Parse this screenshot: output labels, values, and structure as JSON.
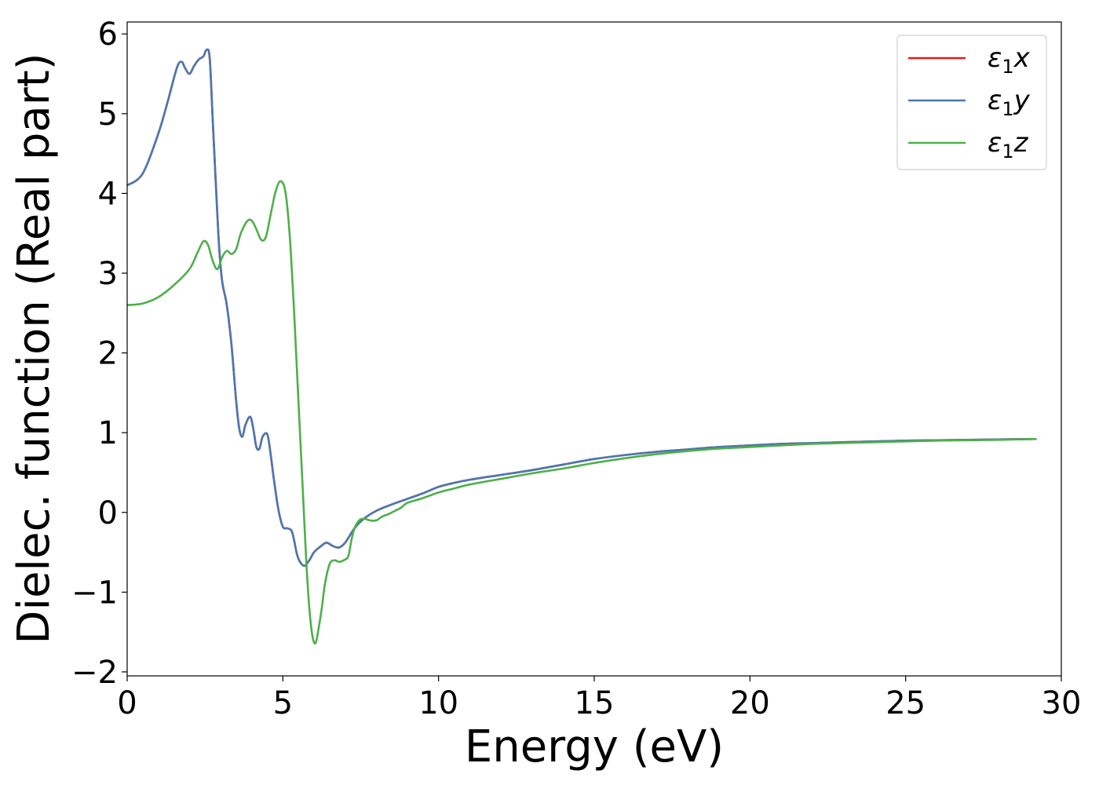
{
  "chart_data": {
    "type": "line",
    "xlabel": "Energy (eV)",
    "ylabel": "Dielec. function (Real part)",
    "xlim": [
      0,
      30
    ],
    "ylim": [
      -2.05,
      6.15
    ],
    "x_ticks": [
      0,
      5,
      10,
      15,
      20,
      25,
      30
    ],
    "y_ticks": [
      -2,
      -1,
      0,
      1,
      2,
      3,
      4,
      5,
      6
    ],
    "grid": false,
    "legend_position": "top-right",
    "series": [
      {
        "name": "ε1x",
        "legend_main": "ε",
        "legend_sub": "1",
        "legend_suffix": "x",
        "color": "#e41a1c",
        "x": [
          0.0,
          0.5,
          1.0,
          1.3,
          1.6,
          1.75,
          1.85,
          2.0,
          2.15,
          2.3,
          2.45,
          2.55,
          2.65,
          2.75,
          2.85,
          2.95,
          3.05,
          3.2,
          3.35,
          3.5,
          3.6,
          3.7,
          3.8,
          3.95,
          4.05,
          4.15,
          4.25,
          4.35,
          4.5,
          4.6,
          4.7,
          4.85,
          5.0,
          5.15,
          5.3,
          5.45,
          5.55,
          5.7,
          5.85,
          6.0,
          6.2,
          6.4,
          6.6,
          6.8,
          7.0,
          7.3,
          7.6,
          8.0,
          8.5,
          9.0,
          9.5,
          10.0,
          10.5,
          11.0,
          12.0,
          13.0,
          14.0,
          15.0,
          16.0,
          17.0,
          18.0,
          19.0,
          20.0,
          21.0,
          22.0,
          23.0,
          24.0,
          25.0,
          26.0,
          27.0,
          28.0,
          29.0,
          29.2
        ],
        "y": [
          4.1,
          4.25,
          4.75,
          5.15,
          5.58,
          5.65,
          5.58,
          5.5,
          5.6,
          5.68,
          5.72,
          5.8,
          5.7,
          4.9,
          4.1,
          3.35,
          2.9,
          2.6,
          2.1,
          1.4,
          1.05,
          0.95,
          1.1,
          1.2,
          1.05,
          0.82,
          0.8,
          0.95,
          0.98,
          0.75,
          0.45,
          0.05,
          -0.18,
          -0.2,
          -0.25,
          -0.52,
          -0.62,
          -0.67,
          -0.6,
          -0.5,
          -0.43,
          -0.38,
          -0.42,
          -0.44,
          -0.38,
          -0.2,
          -0.08,
          0.02,
          0.1,
          0.17,
          0.24,
          0.32,
          0.37,
          0.41,
          0.47,
          0.53,
          0.6,
          0.67,
          0.72,
          0.76,
          0.79,
          0.82,
          0.84,
          0.86,
          0.87,
          0.88,
          0.89,
          0.9,
          0.905,
          0.91,
          0.915,
          0.92,
          0.92
        ]
      },
      {
        "name": "ε1y",
        "legend_main": "ε",
        "legend_sub": "1",
        "legend_suffix": "y",
        "color": "#4a78b0",
        "x": [
          0.0,
          0.5,
          1.0,
          1.3,
          1.6,
          1.75,
          1.85,
          2.0,
          2.15,
          2.3,
          2.45,
          2.55,
          2.65,
          2.75,
          2.85,
          2.95,
          3.05,
          3.2,
          3.35,
          3.5,
          3.6,
          3.7,
          3.8,
          3.95,
          4.05,
          4.15,
          4.25,
          4.35,
          4.5,
          4.6,
          4.7,
          4.85,
          5.0,
          5.15,
          5.3,
          5.45,
          5.55,
          5.7,
          5.85,
          6.0,
          6.2,
          6.4,
          6.6,
          6.8,
          7.0,
          7.3,
          7.6,
          8.0,
          8.5,
          9.0,
          9.5,
          10.0,
          10.5,
          11.0,
          12.0,
          13.0,
          14.0,
          15.0,
          16.0,
          17.0,
          18.0,
          19.0,
          20.0,
          21.0,
          22.0,
          23.0,
          24.0,
          25.0,
          26.0,
          27.0,
          28.0,
          29.0,
          29.2
        ],
        "y": [
          4.1,
          4.25,
          4.75,
          5.15,
          5.58,
          5.65,
          5.58,
          5.5,
          5.6,
          5.68,
          5.72,
          5.8,
          5.7,
          4.9,
          4.1,
          3.35,
          2.9,
          2.6,
          2.1,
          1.4,
          1.05,
          0.95,
          1.1,
          1.2,
          1.05,
          0.82,
          0.8,
          0.95,
          0.98,
          0.75,
          0.45,
          0.05,
          -0.18,
          -0.2,
          -0.25,
          -0.52,
          -0.62,
          -0.67,
          -0.6,
          -0.5,
          -0.43,
          -0.38,
          -0.42,
          -0.44,
          -0.38,
          -0.2,
          -0.08,
          0.02,
          0.1,
          0.17,
          0.24,
          0.32,
          0.37,
          0.41,
          0.47,
          0.53,
          0.6,
          0.67,
          0.72,
          0.76,
          0.79,
          0.82,
          0.84,
          0.86,
          0.87,
          0.88,
          0.89,
          0.9,
          0.905,
          0.91,
          0.915,
          0.92,
          0.92
        ]
      },
      {
        "name": "ε1z",
        "legend_main": "ε",
        "legend_sub": "1",
        "legend_suffix": "z",
        "color": "#4daf4a",
        "x": [
          0.0,
          0.5,
          1.0,
          1.5,
          2.0,
          2.25,
          2.45,
          2.6,
          2.75,
          2.9,
          3.05,
          3.2,
          3.35,
          3.5,
          3.65,
          3.85,
          4.0,
          4.15,
          4.3,
          4.45,
          4.6,
          4.75,
          4.9,
          5.05,
          5.15,
          5.25,
          5.35,
          5.45,
          5.55,
          5.65,
          5.75,
          5.85,
          5.95,
          6.05,
          6.15,
          6.25,
          6.35,
          6.5,
          6.65,
          6.8,
          6.95,
          7.1,
          7.2,
          7.3,
          7.45,
          7.6,
          7.8,
          8.0,
          8.2,
          8.4,
          8.6,
          8.8,
          9.0,
          9.5,
          10.0,
          10.5,
          11.0,
          12.0,
          13.0,
          14.0,
          15.0,
          16.0,
          17.0,
          18.0,
          19.0,
          20.0,
          21.0,
          22.0,
          23.0,
          24.0,
          25.0,
          26.0,
          27.0,
          28.0,
          29.0,
          29.2
        ],
        "y": [
          2.6,
          2.62,
          2.7,
          2.85,
          3.05,
          3.25,
          3.4,
          3.35,
          3.15,
          3.05,
          3.2,
          3.28,
          3.24,
          3.3,
          3.5,
          3.65,
          3.66,
          3.55,
          3.42,
          3.45,
          3.72,
          4.0,
          4.15,
          4.08,
          3.8,
          3.3,
          2.6,
          1.8,
          1.0,
          0.2,
          -0.6,
          -1.2,
          -1.55,
          -1.64,
          -1.45,
          -1.2,
          -0.9,
          -0.65,
          -0.6,
          -0.62,
          -0.6,
          -0.55,
          -0.35,
          -0.2,
          -0.1,
          -0.08,
          -0.1,
          -0.1,
          -0.05,
          -0.02,
          0.02,
          0.06,
          0.12,
          0.18,
          0.25,
          0.3,
          0.35,
          0.42,
          0.49,
          0.55,
          0.62,
          0.68,
          0.73,
          0.77,
          0.8,
          0.82,
          0.84,
          0.86,
          0.87,
          0.88,
          0.89,
          0.9,
          0.905,
          0.91,
          0.92,
          0.92
        ]
      }
    ]
  }
}
